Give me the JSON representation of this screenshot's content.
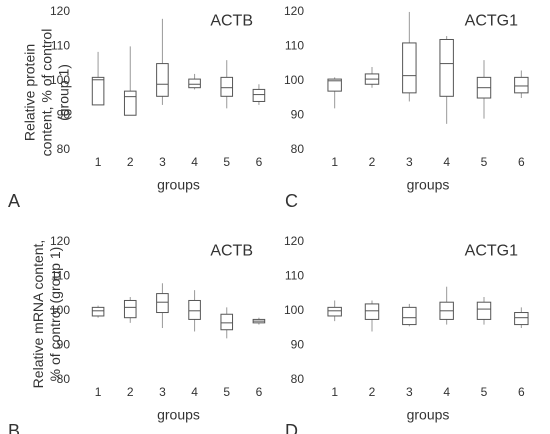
{
  "chart_data": [
    {
      "type": "box",
      "panel": "A",
      "title": "ACTB",
      "ylabel": "Relative protein content, % of control (group 1)",
      "xlabel": "groups",
      "categories": [
        "1",
        "2",
        "3",
        "4",
        "5",
        "6"
      ],
      "values": [
        [
          93,
          93,
          100.3,
          101,
          108.4
        ],
        [
          90,
          90,
          95.4,
          97,
          110
        ],
        [
          93,
          95.5,
          99,
          105,
          118
        ],
        [
          97.5,
          98,
          99,
          100.5,
          102
        ],
        [
          92,
          95.5,
          98,
          101,
          106
        ],
        [
          93,
          94,
          96,
          97.5,
          99
        ]
      ],
      "ylim": [
        77,
        121
      ],
      "yticks": [
        80,
        90,
        100,
        110,
        120
      ],
      "color": "#555555"
    },
    {
      "type": "box",
      "panel": "B",
      "title": "ACTB",
      "ylabel": "Relative mRNA content, % of control (group 1)",
      "xlabel": "groups",
      "categories": [
        "1",
        "2",
        "3",
        "4",
        "5",
        "6"
      ],
      "values": [
        [
          98,
          98.5,
          100,
          101,
          101.5
        ],
        [
          96.5,
          98,
          101,
          103,
          104
        ],
        [
          95,
          99.5,
          102.5,
          105,
          108
        ],
        [
          94,
          97.5,
          100,
          103,
          106
        ],
        [
          92,
          94.5,
          96.5,
          99,
          101
        ],
        [
          96,
          96.5,
          97,
          97.5,
          98
        ]
      ],
      "ylim": [
        77,
        121
      ],
      "yticks": [
        80,
        90,
        100,
        110,
        120
      ],
      "color": "#555555"
    },
    {
      "type": "box",
      "panel": "C",
      "title": "ACTG1",
      "xlabel": "groups",
      "categories": [
        "1",
        "2",
        "3",
        "4",
        "5",
        "6"
      ],
      "values": [
        [
          92,
          97,
          100,
          100.5,
          101
        ],
        [
          98,
          99,
          100.5,
          102,
          104
        ],
        [
          94,
          96.5,
          101.5,
          111,
          120
        ],
        [
          87.5,
          95.5,
          105,
          112,
          113
        ],
        [
          89,
          95,
          98,
          101,
          106
        ],
        [
          95,
          96.5,
          98.5,
          101,
          103
        ]
      ],
      "ylim": [
        77,
        121
      ],
      "yticks": [
        80,
        90,
        100,
        110,
        120
      ],
      "color": "#555555"
    },
    {
      "type": "box",
      "panel": "D",
      "title": "ACTG1",
      "xlabel": "groups",
      "categories": [
        "1",
        "2",
        "3",
        "4",
        "5",
        "6"
      ],
      "values": [
        [
          97,
          98.5,
          100,
          101,
          103
        ],
        [
          94,
          97.5,
          100,
          102,
          103
        ],
        [
          95.5,
          96,
          98,
          101,
          102
        ],
        [
          96,
          97.5,
          100,
          102.5,
          107
        ],
        [
          96,
          97.5,
          100.5,
          102.5,
          104
        ],
        [
          95,
          96,
          98,
          99.5,
          101
        ]
      ],
      "ylim": [
        77,
        121
      ],
      "yticks": [
        80,
        90,
        100,
        110,
        120
      ],
      "color": "#555555"
    }
  ]
}
